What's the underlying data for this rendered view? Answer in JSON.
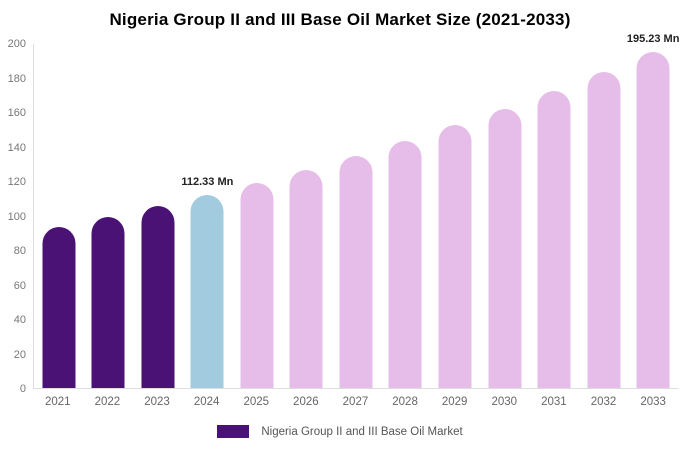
{
  "title": "Nigeria Group II and III Base Oil Market Size (2021-2033)",
  "colors": {
    "historical": "#4B1276",
    "current": "#A3CBE0",
    "forecast": "#E5BDE8",
    "axis_line": "#DDDDDD",
    "tick_text": "#777777",
    "category_text": "#666666",
    "annotation_text": "#222222",
    "legend_text": "#555555"
  },
  "legend": {
    "label": "Nigeria Group II and III Base Oil Market",
    "swatch_color": "#4B1276"
  },
  "chart_data": {
    "type": "bar",
    "title": "Nigeria Group II and III Base Oil Market Size (2021-2033)",
    "unit": "Mn",
    "categories": [
      "2021",
      "2022",
      "2023",
      "2024",
      "2025",
      "2026",
      "2027",
      "2028",
      "2029",
      "2030",
      "2031",
      "2032",
      "2033"
    ],
    "values": [
      93.4,
      99.4,
      105.6,
      112.33,
      119.4,
      127.0,
      135.1,
      143.6,
      152.7,
      162.4,
      172.6,
      183.6,
      195.23
    ],
    "bar_roles": [
      "historical",
      "historical",
      "historical",
      "current",
      "forecast",
      "forecast",
      "forecast",
      "forecast",
      "forecast",
      "forecast",
      "forecast",
      "forecast",
      "forecast"
    ],
    "annotations": [
      {
        "category": "2024",
        "text": "112.33 Mn"
      },
      {
        "category": "2033",
        "text": "195.23 Mn"
      }
    ],
    "ylim": [
      0,
      200
    ],
    "yticks": [
      0,
      20,
      40,
      60,
      80,
      100,
      120,
      140,
      160,
      180,
      200
    ],
    "xlabel": "",
    "ylabel": "",
    "grid": false,
    "legend_entries": [
      "Nigeria Group II and III Base Oil Market"
    ],
    "legend_position": "bottom"
  }
}
